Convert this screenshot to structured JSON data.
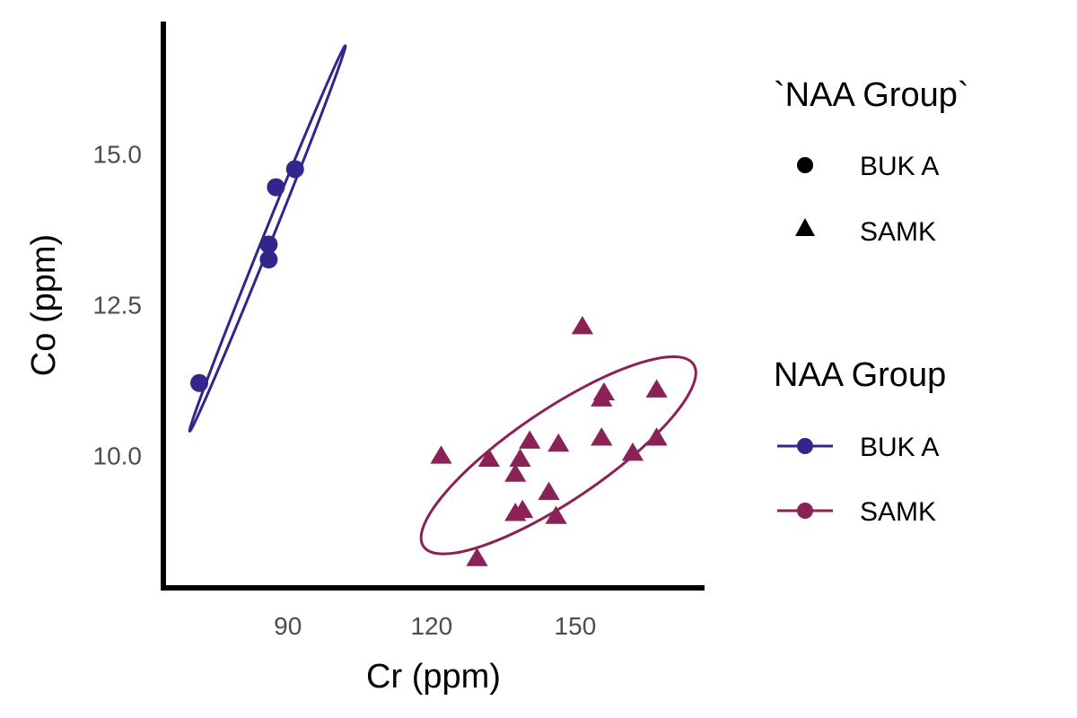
{
  "chart_data": {
    "type": "scatter",
    "xlabel": "Cr (ppm)",
    "ylabel": "Co (ppm)",
    "xlim": [
      64,
      177
    ],
    "ylim": [
      7.8,
      17.2
    ],
    "x_ticks": [
      90,
      120,
      150
    ],
    "y_ticks": [
      10.0,
      12.5,
      15.0
    ],
    "x_tick_labels": [
      "90",
      "120",
      "150"
    ],
    "y_tick_labels": [
      "10.0",
      "12.5",
      "15.0"
    ],
    "grid": false,
    "legend_position": "right",
    "legends": [
      {
        "title": "`NAA Group`",
        "entries": [
          {
            "label": "BUK A",
            "symbol": "circle"
          },
          {
            "label": "SAMK",
            "symbol": "triangle"
          }
        ]
      },
      {
        "title": "NAA Group",
        "entries": [
          {
            "label": "BUK A",
            "symbol": "line-circle",
            "color": "#32268c"
          },
          {
            "label": "SAMK",
            "symbol": "line-circle",
            "color": "#8b2257"
          }
        ]
      }
    ],
    "series": [
      {
        "name": "BUK A",
        "shape": "circle",
        "color": "#32268c",
        "points": [
          {
            "x": 71.5,
            "y": 11.2
          },
          {
            "x": 86.0,
            "y": 13.5
          },
          {
            "x": 86.0,
            "y": 13.25
          },
          {
            "x": 87.5,
            "y": 14.45
          },
          {
            "x": 91.5,
            "y": 14.75
          }
        ],
        "ellipse": {
          "center": [
            85.5,
            13.6
          ],
          "extreme_points": [
            [
              69.5,
              10.4
            ],
            [
              102.0,
              16.8
            ]
          ],
          "minor_half_width": 0.95
        }
      },
      {
        "name": "SAMK",
        "shape": "triangle",
        "color": "#8b2257",
        "points": [
          {
            "x": 122.0,
            "y": 10.0
          },
          {
            "x": 129.5,
            "y": 8.3
          },
          {
            "x": 132.0,
            "y": 9.95
          },
          {
            "x": 137.5,
            "y": 9.7
          },
          {
            "x": 137.5,
            "y": 9.05
          },
          {
            "x": 138.5,
            "y": 9.95
          },
          {
            "x": 139.0,
            "y": 9.1
          },
          {
            "x": 140.5,
            "y": 10.25
          },
          {
            "x": 144.5,
            "y": 9.4
          },
          {
            "x": 146.0,
            "y": 9.0
          },
          {
            "x": 146.5,
            "y": 10.2
          },
          {
            "x": 151.5,
            "y": 12.15
          },
          {
            "x": 155.5,
            "y": 10.3
          },
          {
            "x": 155.5,
            "y": 10.95
          },
          {
            "x": 156.0,
            "y": 11.05
          },
          {
            "x": 162.0,
            "y": 10.05
          },
          {
            "x": 167.0,
            "y": 11.1
          },
          {
            "x": 167.0,
            "y": 10.3
          }
        ],
        "ellipse": {
          "center": [
            146.5,
            10.0
          ],
          "semi_axes": [
            34.0,
            9.5
          ],
          "rotation_deg": -34
        }
      }
    ]
  }
}
